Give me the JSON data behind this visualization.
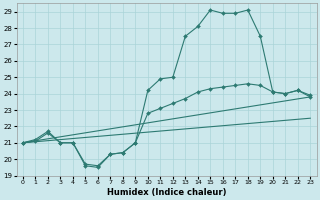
{
  "title": "",
  "xlabel": "Humidex (Indice chaleur)",
  "bg_color": "#cce8ec",
  "grid_color": "#aad4d8",
  "line_color": "#2d7a72",
  "xlim": [
    -0.5,
    23.5
  ],
  "ylim": [
    19,
    29.5
  ],
  "yticks": [
    19,
    20,
    21,
    22,
    23,
    24,
    25,
    26,
    27,
    28,
    29
  ],
  "xticks": [
    0,
    1,
    2,
    3,
    4,
    5,
    6,
    7,
    8,
    9,
    10,
    11,
    12,
    13,
    14,
    15,
    16,
    17,
    18,
    19,
    20,
    21,
    22,
    23
  ],
  "lines": [
    {
      "x": [
        0,
        1,
        2,
        3,
        4,
        5,
        6,
        7,
        8,
        9,
        10,
        11,
        12,
        13,
        14,
        15,
        16,
        17,
        18,
        19,
        20,
        21,
        22,
        23
      ],
      "y": [
        21.0,
        21.2,
        21.7,
        21.0,
        21.0,
        19.6,
        19.5,
        20.3,
        20.4,
        21.0,
        24.2,
        24.9,
        25.0,
        27.5,
        28.1,
        29.1,
        28.9,
        28.9,
        29.1,
        27.5,
        24.1,
        24.0,
        24.2,
        23.8
      ]
    },
    {
      "x": [
        0,
        1,
        2,
        3,
        4,
        5,
        6,
        7,
        8,
        9,
        10,
        11,
        12,
        13,
        14,
        15,
        16,
        17,
        18,
        19,
        20,
        21,
        22,
        23
      ],
      "y": [
        21.0,
        21.1,
        21.6,
        21.0,
        21.0,
        19.7,
        19.6,
        20.3,
        20.4,
        21.0,
        22.8,
        23.1,
        23.4,
        23.7,
        24.1,
        24.3,
        24.4,
        24.5,
        24.6,
        24.5,
        24.1,
        24.0,
        24.2,
        23.9
      ]
    },
    {
      "x": [
        0,
        23
      ],
      "y": [
        21.0,
        23.8
      ]
    },
    {
      "x": [
        0,
        23
      ],
      "y": [
        21.0,
        22.5
      ]
    }
  ]
}
